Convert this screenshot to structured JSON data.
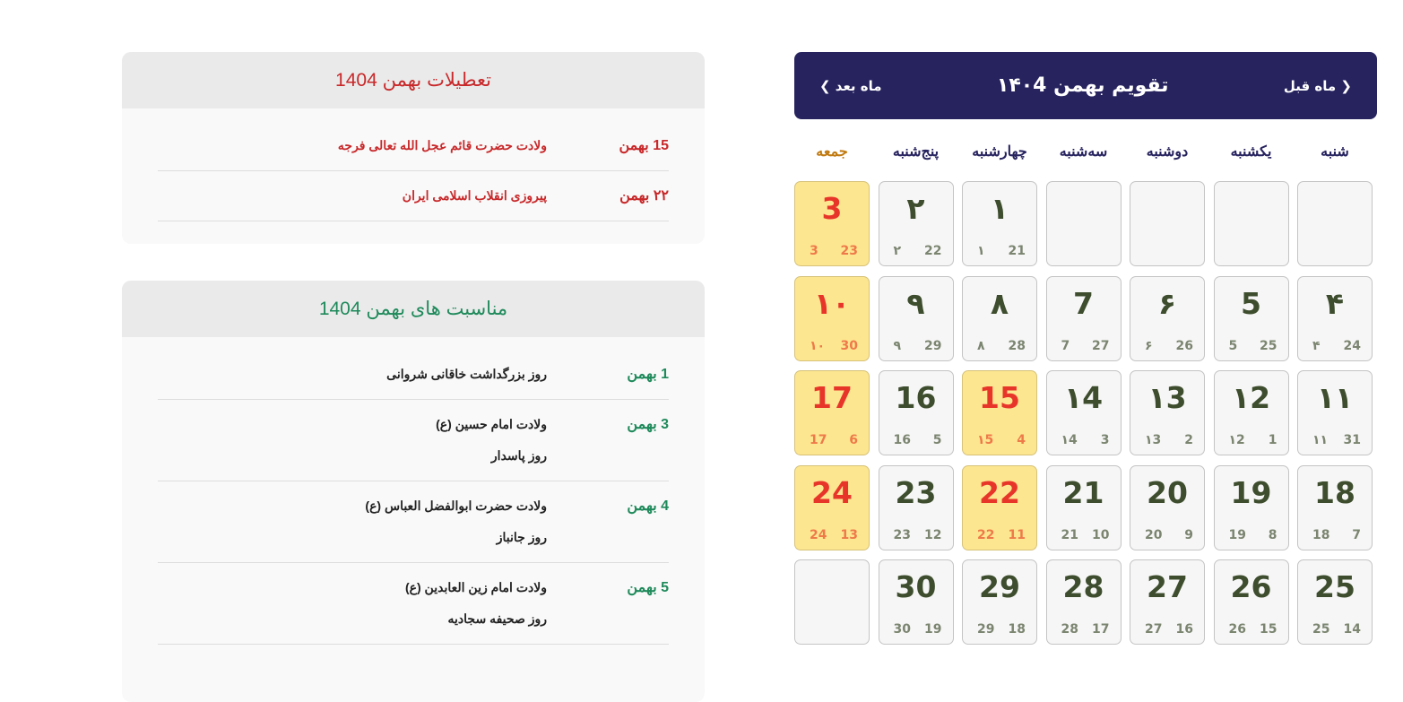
{
  "holidays": {
    "title": "تعطیلات بهمن 1404",
    "items": [
      {
        "date": "15 بهمن",
        "texts": [
          "ولادت حضرت قائم عجل الله تعالی فرجه"
        ]
      },
      {
        "date": "۲۲ بهمن",
        "texts": [
          "پیروزی انقلاب اسلامی ایران"
        ]
      }
    ]
  },
  "events": {
    "title": "مناسبت های بهمن 1404",
    "items": [
      {
        "date": "1 بهمن",
        "texts": [
          "روز بزرگداشت خاقانی شروانی"
        ]
      },
      {
        "date": "3 بهمن",
        "texts": [
          "ولادت امام حسین (ع)",
          "روز پاسدار"
        ]
      },
      {
        "date": "4 بهمن",
        "texts": [
          "ولادت حضرت ابوالفضل العباس (ع)",
          "روز جانباز"
        ]
      },
      {
        "date": "5 بهمن",
        "texts": [
          "ولادت امام زین العابدین (ع)",
          "روز صحیفه سجادیه"
        ]
      }
    ]
  },
  "calendar": {
    "title": "تقویم بهمن ۱۴۰4",
    "prev": "❮ ماه قبل",
    "next": "ماه بعد ❯",
    "accent": "#27235f",
    "holiday_bg": "#fde690",
    "holiday_color": "#e8352a",
    "weekdays": [
      "شنبه",
      "یکشنبه",
      "دوشنبه",
      "سه‌شنبه",
      "چهارشنبه",
      "پنج‌شنبه",
      "جمعه"
    ],
    "cells": [
      null,
      null,
      null,
      null,
      {
        "main": "١",
        "a": "١",
        "b": "21"
      },
      {
        "main": "٢",
        "a": "٢",
        "b": "22"
      },
      {
        "main": "3",
        "a": "3",
        "b": "23",
        "holiday": true
      },
      {
        "main": "۴",
        "a": "۴",
        "b": "24"
      },
      {
        "main": "5",
        "a": "5",
        "b": "25"
      },
      {
        "main": "۶",
        "a": "۶",
        "b": "26"
      },
      {
        "main": "7",
        "a": "7",
        "b": "27"
      },
      {
        "main": "۸",
        "a": "۸",
        "b": "28"
      },
      {
        "main": "۹",
        "a": "۹",
        "b": "29"
      },
      {
        "main": "١٠",
        "a": "١٠",
        "b": "30",
        "holiday": true
      },
      {
        "main": "١١",
        "a": "١١",
        "b": "31"
      },
      {
        "main": "١2",
        "a": "١2",
        "b": "1"
      },
      {
        "main": "١3",
        "a": "١3",
        "b": "2"
      },
      {
        "main": "١4",
        "a": "١4",
        "b": "3"
      },
      {
        "main": "15",
        "a": "١5",
        "b": "4",
        "holiday": true
      },
      {
        "main": "16",
        "a": "16",
        "b": "5"
      },
      {
        "main": "17",
        "a": "17",
        "b": "6",
        "holiday": true
      },
      {
        "main": "18",
        "a": "18",
        "b": "7"
      },
      {
        "main": "19",
        "a": "19",
        "b": "8"
      },
      {
        "main": "20",
        "a": "20",
        "b": "9"
      },
      {
        "main": "21",
        "a": "21",
        "b": "10"
      },
      {
        "main": "22",
        "a": "22",
        "b": "11",
        "holiday": true
      },
      {
        "main": "23",
        "a": "23",
        "b": "12"
      },
      {
        "main": "24",
        "a": "24",
        "b": "13",
        "holiday": true
      },
      {
        "main": "25",
        "a": "25",
        "b": "14"
      },
      {
        "main": "26",
        "a": "26",
        "b": "15"
      },
      {
        "main": "27",
        "a": "27",
        "b": "16"
      },
      {
        "main": "28",
        "a": "28",
        "b": "17"
      },
      {
        "main": "29",
        "a": "29",
        "b": "18"
      },
      {
        "main": "30",
        "a": "30",
        "b": "19"
      },
      null
    ]
  }
}
